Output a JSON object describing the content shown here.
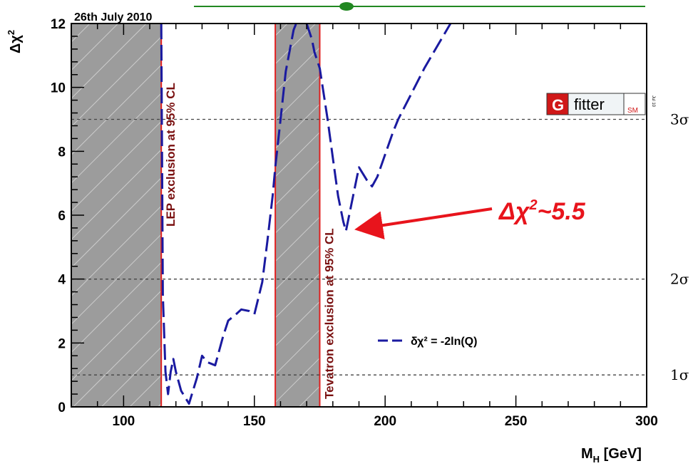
{
  "chart_data": {
    "type": "line",
    "date_label": "26th July 2010",
    "xlabel_main": "M",
    "xlabel_sub": "H",
    "xlabel_unit": " [GeV]",
    "ylabel_main": "Δχ",
    "ylabel_sup": "2",
    "xlim": [
      80,
      300
    ],
    "ylim": [
      0,
      12
    ],
    "x_ticks": [
      100,
      150,
      200,
      250,
      300
    ],
    "y_ticks": [
      0,
      2,
      4,
      6,
      8,
      10,
      12
    ],
    "sigma_lines": [
      {
        "value": 1,
        "label": "1σ"
      },
      {
        "value": 4,
        "label": "2σ"
      },
      {
        "value": 9,
        "label": "3σ"
      }
    ],
    "excluded_regions": [
      {
        "from": 80,
        "to": 114.4,
        "label": "LEP exclusion at 95% CL"
      },
      {
        "from": 158,
        "to": 175,
        "label": "Tevatron exclusion at 95% CL"
      }
    ],
    "series": [
      {
        "name": "δχ² = -2ln(Q)",
        "color": "#1a1aa0",
        "x": [
          114.4,
          115,
          116,
          117,
          118,
          119,
          120,
          122,
          125,
          128,
          130,
          132,
          135,
          138,
          140,
          143,
          145,
          148,
          150,
          153,
          155,
          157,
          158,
          160,
          162,
          165,
          167,
          168,
          170,
          172,
          173,
          175,
          178,
          180,
          182,
          184,
          185,
          187,
          189,
          190,
          193,
          195,
          197,
          200,
          203,
          205,
          210,
          215,
          220,
          225,
          230,
          233
        ],
        "y": [
          12,
          3.5,
          1.1,
          0.4,
          1.1,
          1.5,
          1.1,
          0.5,
          0.1,
          0.9,
          1.6,
          1.4,
          1.3,
          2.2,
          2.7,
          2.9,
          3.05,
          3.0,
          2.9,
          3.9,
          5.2,
          6.6,
          7.5,
          9.0,
          10.5,
          11.8,
          12.2,
          12.4,
          12.0,
          11.5,
          11.1,
          10.6,
          9.0,
          7.8,
          6.6,
          5.8,
          5.5,
          6.3,
          7.1,
          7.5,
          7.1,
          6.9,
          7.2,
          7.9,
          8.6,
          9.0,
          9.8,
          10.6,
          11.3,
          12.0,
          12.7,
          13.0
        ]
      }
    ],
    "annotation": {
      "text_main": "Δχ",
      "text_sup": "2",
      "text_tail": "~5.5",
      "points_to": [
        185,
        5.5
      ]
    },
    "logo": {
      "g": "G",
      "fitter": "fitter",
      "sm": "SM",
      "version": "Jul 10"
    }
  }
}
